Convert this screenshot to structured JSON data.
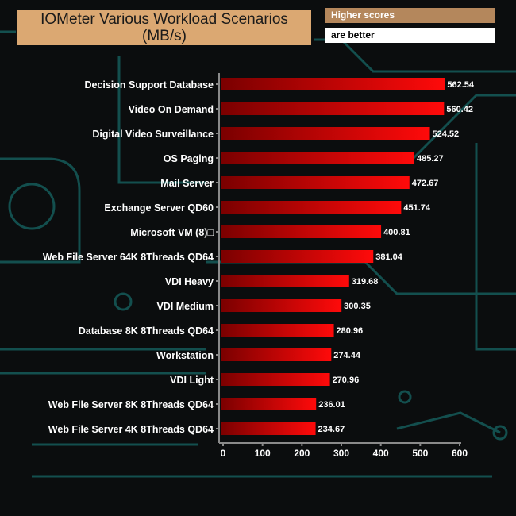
{
  "header": {
    "title_line1": "IOMeter Various Workload Scenarios",
    "title_line2": "(MB/s)",
    "note_line1": "Higher scores",
    "note_line2": "are better"
  },
  "colors": {
    "bar_start": "#7a0000",
    "bar_end": "#ff0a0a",
    "axis": "#8a8a8a",
    "circuit": "#1a6a6a"
  },
  "chart_data": {
    "type": "bar",
    "orientation": "horizontal",
    "title": "IOMeter Various Workload Scenarios (MB/s)",
    "categories": [
      "Decision Support Database",
      "Video On Demand",
      "Digital Video Surveillance",
      "OS Paging",
      "Mail Server",
      "Exchange Server QD60",
      "Microsoft VM (8)□",
      "Web File Server 64K 8Threads QD64",
      "VDI Heavy",
      "VDI Medium",
      "Database 8K 8Threads QD64",
      "Workstation",
      "VDI Light",
      "Web File Server 8K 8Threads QD64",
      "Web File Server 4K 8Threads QD64"
    ],
    "values": [
      562.54,
      560.42,
      524.52,
      485.27,
      472.67,
      451.74,
      400.81,
      381.04,
      319.68,
      300.35,
      280.96,
      274.44,
      270.96,
      236.01,
      234.67
    ],
    "value_labels": [
      "562.54",
      "560.42",
      "524.52",
      "485.27",
      "472.67",
      "451.74",
      "400.81",
      "381.04",
      "319.68",
      "300.35",
      "280.96",
      "274.44",
      "270.96",
      "236.01",
      "234.67"
    ],
    "xlim": [
      0,
      600
    ],
    "xticks": [
      "0",
      "100",
      "200",
      "300",
      "400",
      "500",
      "600"
    ],
    "xlabel": "",
    "ylabel": "",
    "grid": false,
    "legend": "none"
  }
}
